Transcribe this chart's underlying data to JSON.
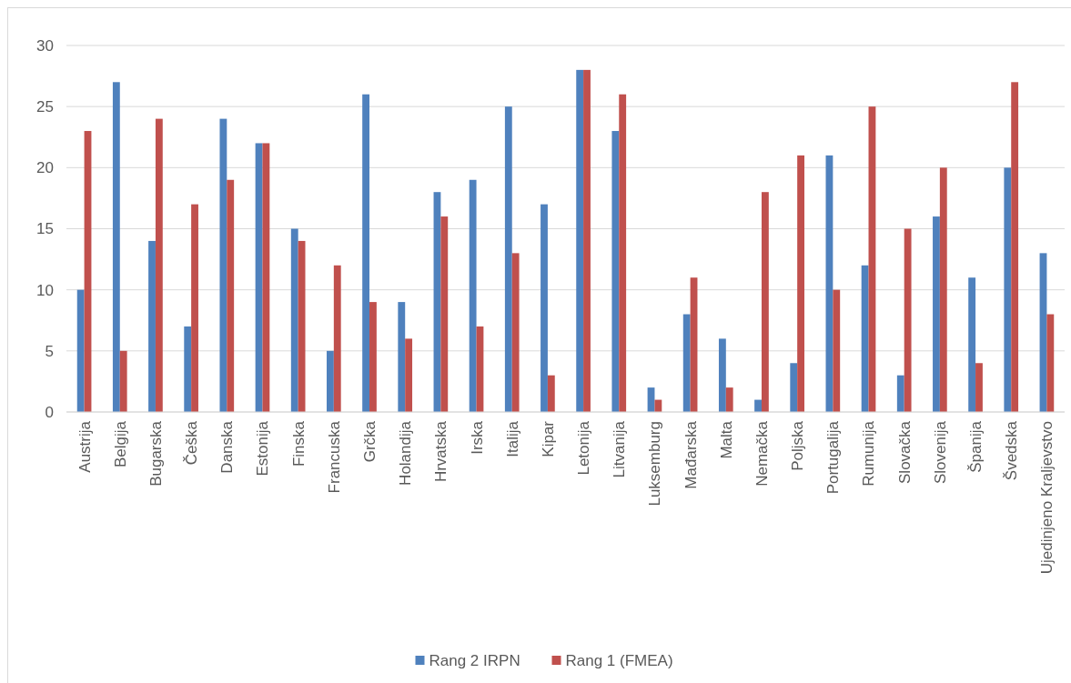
{
  "chart_data": {
    "type": "bar",
    "categories": [
      "Austrija",
      "Belgija",
      "Bugarska",
      "Češka",
      "Danska",
      "Estonija",
      "Finska",
      "Francuska",
      "Grčka",
      "Holandija",
      "Hrvatska",
      "Irska",
      "Italija",
      "Kipar",
      "Letonija",
      "Litvanija",
      "Luksemburg",
      "Mađarska",
      "Malta",
      "Nemačka",
      "Poljska",
      "Portugalija",
      "Rumunija",
      "Slovačka",
      "Slovenija",
      "Španija",
      "Švedska",
      "Ujedinjeno Kraljevstvo"
    ],
    "series": [
      {
        "name": "Rang 2 IRPN",
        "color": "#4f81bd",
        "values": [
          10,
          27,
          14,
          7,
          24,
          22,
          15,
          5,
          26,
          9,
          18,
          19,
          25,
          17,
          28,
          23,
          2,
          8,
          6,
          1,
          4,
          21,
          12,
          3,
          16,
          11,
          20,
          13
        ]
      },
      {
        "name": "Rang 1 (FMEA)",
        "color": "#c0504d",
        "values": [
          23,
          5,
          24,
          17,
          19,
          22,
          14,
          12,
          9,
          6,
          16,
          7,
          13,
          3,
          28,
          26,
          1,
          11,
          2,
          18,
          21,
          10,
          25,
          15,
          20,
          4,
          27,
          8
        ]
      }
    ],
    "ylim": [
      0,
      30
    ],
    "yticks": [
      0,
      5,
      10,
      15,
      20,
      25,
      30
    ],
    "grid": "y",
    "legend": "bottom"
  }
}
